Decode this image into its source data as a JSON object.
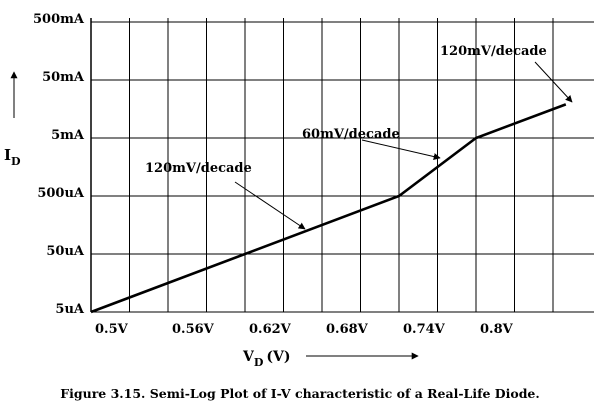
{
  "chart_data": {
    "type": "line",
    "y_scale": "log",
    "ylabel_main": "I",
    "ylabel_sub": "D",
    "xlabel_main": "V",
    "xlabel_sub": "D",
    "xlabel_unit": "(V)",
    "yticks": [
      "5uA",
      "50uA",
      "500uA",
      "5mA",
      "50mA",
      "500mA"
    ],
    "ytick_values_A": [
      5e-06,
      5e-05,
      0.0005,
      0.005,
      0.05,
      0.5
    ],
    "xticks": [
      "0.5V",
      "0.56V",
      "0.62V",
      "0.68V",
      "0.74V",
      "0.8V"
    ],
    "xtick_values_V": [
      0.5,
      0.56,
      0.62,
      0.68,
      0.74,
      0.8
    ],
    "xlim": [
      0.5,
      0.86
    ],
    "ylim_A": [
      5e-06,
      0.5
    ],
    "grid": true,
    "series": [
      {
        "x": [
          0.5,
          0.74,
          0.8,
          0.87
        ],
        "y": [
          5e-06,
          0.0005,
          0.005,
          0.019
        ]
      }
    ],
    "annotations": [
      {
        "text": "120mV/decade"
      },
      {
        "text": "60mV/decade"
      },
      {
        "text": "120mV/decade"
      }
    ],
    "caption": "Figure 3.15. Semi-Log Plot of I-V characteristic of a Real-Life Diode."
  }
}
